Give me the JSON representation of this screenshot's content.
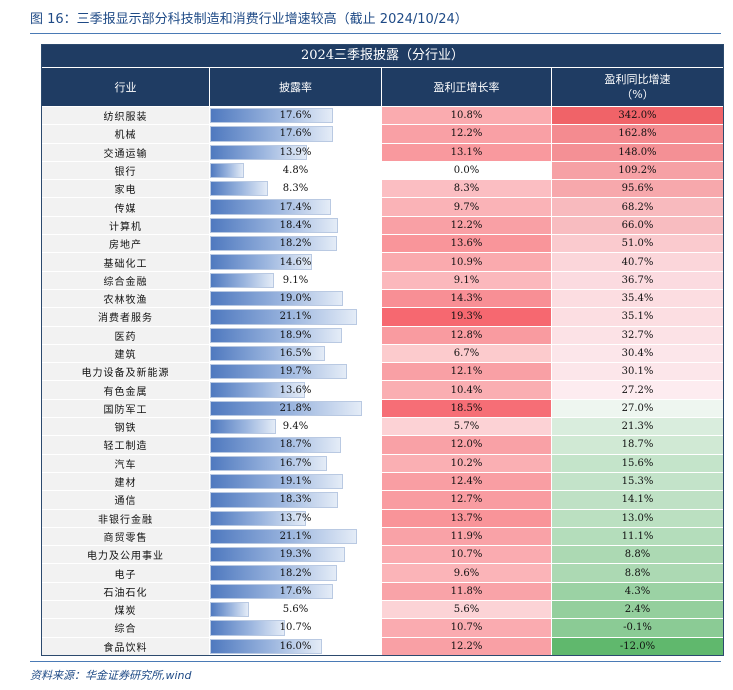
{
  "caption": "图 16：三季报显示部分科技制造和消费行业增速较高（截止 2024/10/24）",
  "table_title": "2024三季报披露（分行业）",
  "headers": {
    "industry": "行业",
    "disclosure": "披露率",
    "profit_rate": "盈利正增长率",
    "yoy_line1": "盈利同比增速",
    "yoy_line2": "（%）"
  },
  "rows": [
    {
      "name": "纺织服装",
      "disc": "17.6%",
      "disc_v": 17.6,
      "pos": "10.8%",
      "pos_v": 10.8,
      "yoy": "342.0%",
      "yoy_v": 342.0
    },
    {
      "name": "机械",
      "disc": "17.6%",
      "disc_v": 17.6,
      "pos": "12.2%",
      "pos_v": 12.2,
      "yoy": "162.8%",
      "yoy_v": 162.8
    },
    {
      "name": "交通运输",
      "disc": "13.9%",
      "disc_v": 13.9,
      "pos": "13.1%",
      "pos_v": 13.1,
      "yoy": "148.0%",
      "yoy_v": 148.0
    },
    {
      "name": "银行",
      "disc": "4.8%",
      "disc_v": 4.8,
      "pos": "0.0%",
      "pos_v": 0.0,
      "yoy": "109.2%",
      "yoy_v": 109.2
    },
    {
      "name": "家电",
      "disc": "8.3%",
      "disc_v": 8.3,
      "pos": "8.3%",
      "pos_v": 8.3,
      "yoy": "95.6%",
      "yoy_v": 95.6
    },
    {
      "name": "传媒",
      "disc": "17.4%",
      "disc_v": 17.4,
      "pos": "9.7%",
      "pos_v": 9.7,
      "yoy": "68.2%",
      "yoy_v": 68.2
    },
    {
      "name": "计算机",
      "disc": "18.4%",
      "disc_v": 18.4,
      "pos": "12.2%",
      "pos_v": 12.2,
      "yoy": "66.0%",
      "yoy_v": 66.0
    },
    {
      "name": "房地产",
      "disc": "18.2%",
      "disc_v": 18.2,
      "pos": "13.6%",
      "pos_v": 13.6,
      "yoy": "51.0%",
      "yoy_v": 51.0
    },
    {
      "name": "基础化工",
      "disc": "14.6%",
      "disc_v": 14.6,
      "pos": "10.9%",
      "pos_v": 10.9,
      "yoy": "40.7%",
      "yoy_v": 40.7
    },
    {
      "name": "综合金融",
      "disc": "9.1%",
      "disc_v": 9.1,
      "pos": "9.1%",
      "pos_v": 9.1,
      "yoy": "36.7%",
      "yoy_v": 36.7
    },
    {
      "name": "农林牧渔",
      "disc": "19.0%",
      "disc_v": 19.0,
      "pos": "14.3%",
      "pos_v": 14.3,
      "yoy": "35.4%",
      "yoy_v": 35.4
    },
    {
      "name": "消费者服务",
      "disc": "21.1%",
      "disc_v": 21.1,
      "pos": "19.3%",
      "pos_v": 19.3,
      "yoy": "35.1%",
      "yoy_v": 35.1
    },
    {
      "name": "医药",
      "disc": "18.9%",
      "disc_v": 18.9,
      "pos": "12.8%",
      "pos_v": 12.8,
      "yoy": "32.7%",
      "yoy_v": 32.7
    },
    {
      "name": "建筑",
      "disc": "16.5%",
      "disc_v": 16.5,
      "pos": "6.7%",
      "pos_v": 6.7,
      "yoy": "30.4%",
      "yoy_v": 30.4
    },
    {
      "name": "电力设备及新能源",
      "disc": "19.7%",
      "disc_v": 19.7,
      "pos": "12.1%",
      "pos_v": 12.1,
      "yoy": "30.1%",
      "yoy_v": 30.1
    },
    {
      "name": "有色金属",
      "disc": "13.6%",
      "disc_v": 13.6,
      "pos": "10.4%",
      "pos_v": 10.4,
      "yoy": "27.2%",
      "yoy_v": 27.2
    },
    {
      "name": "国防军工",
      "disc": "21.8%",
      "disc_v": 21.8,
      "pos": "18.5%",
      "pos_v": 18.5,
      "yoy": "27.0%",
      "yoy_v": 27.0
    },
    {
      "name": "钢铁",
      "disc": "9.4%",
      "disc_v": 9.4,
      "pos": "5.7%",
      "pos_v": 5.7,
      "yoy": "21.3%",
      "yoy_v": 21.3
    },
    {
      "name": "轻工制造",
      "disc": "18.7%",
      "disc_v": 18.7,
      "pos": "12.0%",
      "pos_v": 12.0,
      "yoy": "18.7%",
      "yoy_v": 18.7
    },
    {
      "name": "汽车",
      "disc": "16.7%",
      "disc_v": 16.7,
      "pos": "10.2%",
      "pos_v": 10.2,
      "yoy": "15.6%",
      "yoy_v": 15.6
    },
    {
      "name": "建材",
      "disc": "19.1%",
      "disc_v": 19.1,
      "pos": "12.4%",
      "pos_v": 12.4,
      "yoy": "15.3%",
      "yoy_v": 15.3
    },
    {
      "name": "通信",
      "disc": "18.3%",
      "disc_v": 18.3,
      "pos": "12.7%",
      "pos_v": 12.7,
      "yoy": "14.1%",
      "yoy_v": 14.1
    },
    {
      "name": "非银行金融",
      "disc": "13.7%",
      "disc_v": 13.7,
      "pos": "13.7%",
      "pos_v": 13.7,
      "yoy": "13.0%",
      "yoy_v": 13.0
    },
    {
      "name": "商贸零售",
      "disc": "21.1%",
      "disc_v": 21.1,
      "pos": "11.9%",
      "pos_v": 11.9,
      "yoy": "11.1%",
      "yoy_v": 11.1
    },
    {
      "name": "电力及公用事业",
      "disc": "19.3%",
      "disc_v": 19.3,
      "pos": "10.7%",
      "pos_v": 10.7,
      "yoy": "8.8%",
      "yoy_v": 8.8
    },
    {
      "name": "电子",
      "disc": "18.2%",
      "disc_v": 18.2,
      "pos": "9.6%",
      "pos_v": 9.6,
      "yoy": "8.8%",
      "yoy_v": 8.8
    },
    {
      "name": "石油石化",
      "disc": "17.6%",
      "disc_v": 17.6,
      "pos": "11.8%",
      "pos_v": 11.8,
      "yoy": "4.3%",
      "yoy_v": 4.3
    },
    {
      "name": "煤炭",
      "disc": "5.6%",
      "disc_v": 5.6,
      "pos": "5.6%",
      "pos_v": 5.6,
      "yoy": "2.4%",
      "yoy_v": 2.4
    },
    {
      "name": "综合",
      "disc": "10.7%",
      "disc_v": 10.7,
      "pos": "10.7%",
      "pos_v": 10.7,
      "yoy": "-0.1%",
      "yoy_v": -0.1
    },
    {
      "name": "食品饮料",
      "disc": "16.0%",
      "disc_v": 16.0,
      "pos": "12.2%",
      "pos_v": 12.2,
      "yoy": "-12.0%",
      "yoy_v": -12.0
    }
  ],
  "footer": "资料来源：华金证券研究所,wind"
}
